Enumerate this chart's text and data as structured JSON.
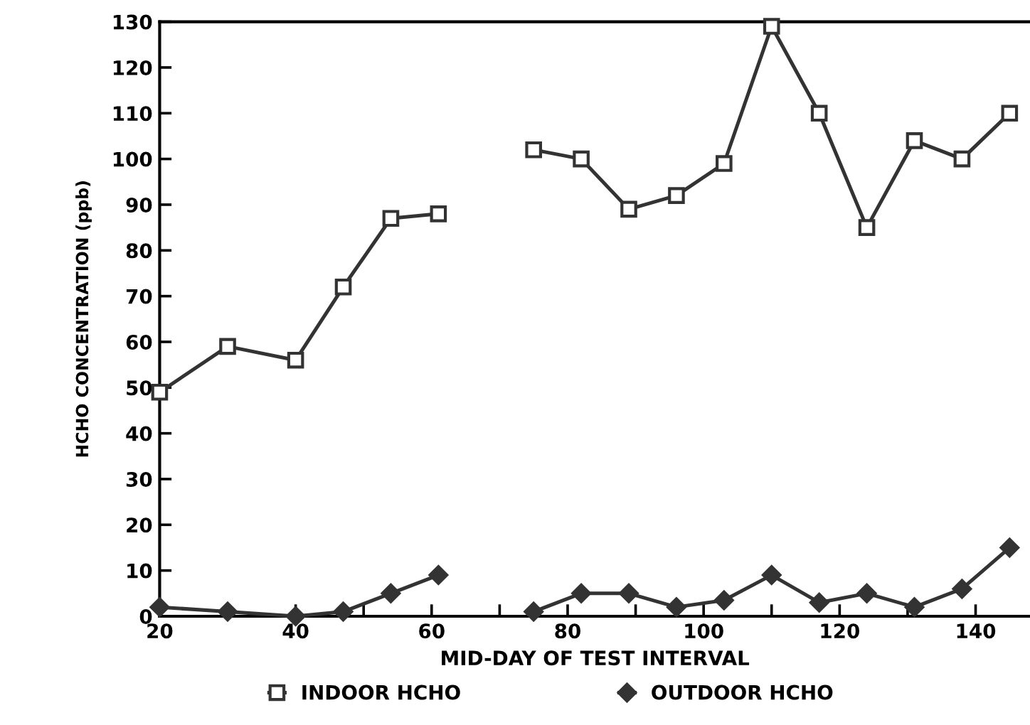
{
  "chart_data": {
    "type": "line",
    "xlabel": "MID-DAY OF TEST INTERVAL",
    "ylabel": "HCHO CONCENTRATION (ppb)",
    "x": [
      20,
      30,
      40,
      47,
      54,
      61,
      68,
      75,
      82,
      89,
      96,
      103,
      110,
      117,
      124,
      131,
      138,
      145
    ],
    "series": [
      {
        "name": "INDOOR HCHO",
        "color": "#333333",
        "marker": "square",
        "values": [
          49,
          59,
          56,
          72,
          87,
          88,
          null,
          102,
          100,
          89,
          92,
          99,
          129,
          110,
          85,
          104,
          100,
          110
        ]
      },
      {
        "name": "OUTDOOR HCHO",
        "color": "#333333",
        "marker": "diamond",
        "values": [
          2,
          1,
          0,
          1,
          5,
          9,
          null,
          1,
          5,
          5,
          2,
          3.5,
          9,
          3,
          5,
          2,
          6,
          15
        ]
      }
    ],
    "xlim": [
      20,
      148
    ],
    "ylim": [
      0,
      130
    ],
    "xticks": [
      20,
      {
        "value": 30,
        "label": null
      },
      40,
      {
        "value": 50,
        "label": null
      },
      60,
      {
        "value": 70,
        "label": null
      },
      80,
      {
        "value": 90,
        "label": null
      },
      100,
      {
        "value": 110,
        "label": null
      },
      120,
      {
        "value": 130,
        "label": null
      },
      140
    ],
    "yticks": [
      0,
      10,
      20,
      30,
      40,
      50,
      60,
      70,
      80,
      90,
      100,
      110,
      120,
      130
    ],
    "grid": false,
    "legend": "bottom",
    "line_style": "solid"
  }
}
